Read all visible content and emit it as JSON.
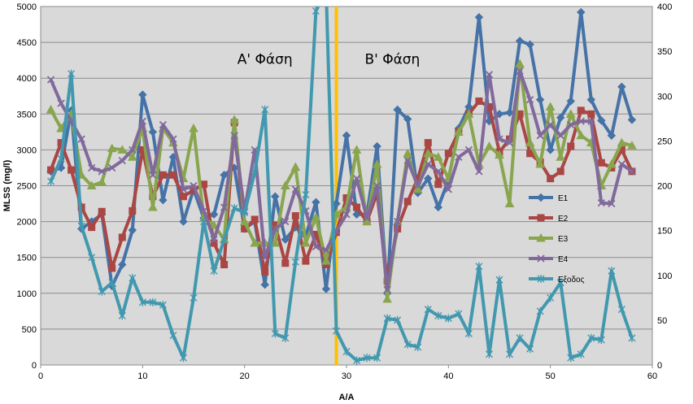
{
  "chart_data": {
    "type": "line",
    "xlabel": "Α/Α",
    "ylabel": "MLSS (mg/l)",
    "xlim": [
      0,
      60
    ],
    "ylim": [
      0,
      5000
    ],
    "y2lim": [
      0,
      400
    ],
    "x_ticks": [
      "0",
      "10",
      "20",
      "30",
      "40",
      "50",
      "60"
    ],
    "y_ticks": [
      "0",
      "500",
      "1000",
      "1500",
      "2000",
      "2500",
      "3000",
      "3500",
      "4000",
      "4500",
      "5000"
    ],
    "y2_ticks": [
      "0",
      "50",
      "100",
      "150",
      "200",
      "250",
      "300",
      "350",
      "400"
    ],
    "grid": true,
    "plot_background": "#d9d9d9",
    "legend_position": "right",
    "divider": {
      "x": 29,
      "color": "#ffc000"
    },
    "annotations": [
      {
        "text": "Α' Φάση",
        "x": 22,
        "y": 4200
      },
      {
        "text": "Β' Φάση",
        "x": 34.5,
        "y": 4200
      }
    ],
    "series": [
      {
        "name": "Ε1",
        "axis": "left",
        "color": "#4572a7",
        "marker": "diamond",
        "x": [
          1,
          2,
          3,
          4,
          5,
          6,
          7,
          8,
          9,
          10,
          11,
          12,
          13,
          14,
          15,
          16,
          17,
          18,
          19,
          20,
          21,
          22,
          23,
          24,
          25,
          26,
          27,
          28,
          29,
          30,
          31,
          32,
          33,
          34,
          35,
          36,
          37,
          38,
          39,
          40,
          41,
          42,
          43,
          44,
          45,
          46,
          47,
          48,
          49,
          50,
          51,
          52,
          53,
          54,
          55,
          56,
          57,
          58
        ],
        "y": [
          2700,
          2750,
          3550,
          1900,
          2000,
          2100,
          1100,
          1400,
          1880,
          3770,
          3250,
          2300,
          2900,
          2000,
          2450,
          2050,
          2100,
          2650,
          2750,
          1900,
          2000,
          1120,
          2350,
          1750,
          1920,
          1800,
          2270,
          1060,
          2250,
          3200,
          2100,
          2100,
          3050,
          1000,
          3560,
          3430,
          2400,
          2600,
          2200,
          2580,
          3300,
          3600,
          4850,
          3400,
          3500,
          3520,
          4520,
          4470,
          3700,
          3000,
          3450,
          3680,
          4920,
          3700,
          3410,
          3200,
          3880,
          3420
        ]
      },
      {
        "name": "Ε2",
        "axis": "left",
        "color": "#aa4643",
        "marker": "square",
        "x": [
          1,
          2,
          3,
          4,
          5,
          6,
          7,
          8,
          9,
          10,
          11,
          12,
          13,
          14,
          15,
          16,
          17,
          18,
          19,
          20,
          21,
          22,
          23,
          24,
          25,
          26,
          27,
          28,
          29,
          30,
          31,
          32,
          33,
          34,
          35,
          36,
          37,
          38,
          39,
          40,
          41,
          42,
          43,
          44,
          45,
          46,
          47,
          48,
          49,
          50,
          51,
          52,
          53,
          54,
          55,
          56,
          57,
          58
        ],
        "y": [
          2720,
          3100,
          2720,
          2200,
          1920,
          2140,
          1350,
          1780,
          2150,
          3000,
          2350,
          2650,
          2650,
          2350,
          2440,
          2520,
          1700,
          1400,
          3380,
          1900,
          2030,
          1300,
          1950,
          1420,
          2080,
          1450,
          1820,
          1400,
          1850,
          2330,
          2200,
          2000,
          2400,
          1170,
          1900,
          2280,
          2600,
          3100,
          2520,
          2950,
          3250,
          3500,
          3680,
          3600,
          2970,
          3150,
          3500,
          2950,
          2830,
          2600,
          2700,
          3050,
          3550,
          3500,
          2820,
          2750,
          3000,
          2700
        ]
      },
      {
        "name": "Ε3",
        "axis": "left",
        "color": "#89a54e",
        "marker": "triangle",
        "x": [
          1,
          2,
          3,
          4,
          5,
          6,
          7,
          8,
          9,
          10,
          11,
          12,
          13,
          14,
          15,
          16,
          17,
          18,
          19,
          20,
          21,
          22,
          23,
          24,
          25,
          26,
          27,
          28,
          29,
          30,
          31,
          32,
          33,
          34,
          35,
          36,
          37,
          38,
          39,
          40,
          41,
          42,
          43,
          44,
          45,
          46,
          47,
          48,
          49,
          50,
          51,
          52,
          53,
          54,
          55,
          56,
          57,
          58
        ],
        "y": [
          3560,
          3300,
          3500,
          2650,
          2500,
          2550,
          3020,
          3000,
          2900,
          3300,
          2200,
          3300,
          3100,
          2600,
          3300,
          2050,
          1950,
          1750,
          3420,
          2000,
          1700,
          1700,
          1700,
          2500,
          2760,
          1700,
          2060,
          1450,
          2100,
          2200,
          3000,
          2000,
          2800,
          920,
          2000,
          2950,
          2450,
          2950,
          2900,
          2600,
          3250,
          3500,
          2800,
          3050,
          2930,
          2250,
          4200,
          3100,
          2800,
          3600,
          2900,
          3500,
          3200,
          3100,
          2500,
          2800,
          3100,
          3060
        ]
      },
      {
        "name": "Ε4",
        "axis": "left",
        "color": "#80699b",
        "marker": "x",
        "x": [
          1,
          2,
          3,
          4,
          5,
          6,
          7,
          8,
          9,
          10,
          11,
          12,
          13,
          14,
          15,
          16,
          17,
          18,
          19,
          20,
          21,
          22,
          23,
          24,
          25,
          26,
          27,
          28,
          29,
          30,
          31,
          32,
          33,
          34,
          35,
          36,
          37,
          38,
          39,
          40,
          41,
          42,
          43,
          44,
          45,
          46,
          47,
          48,
          49,
          50,
          51,
          52,
          53,
          54,
          55,
          56,
          57,
          58
        ],
        "y": [
          3980,
          3650,
          3400,
          3150,
          2750,
          2700,
          2750,
          2850,
          3000,
          3400,
          2650,
          3350,
          3150,
          2450,
          2500,
          2150,
          1750,
          2200,
          3200,
          2150,
          3000,
          1500,
          1900,
          2000,
          2450,
          2150,
          1650,
          1600,
          1870,
          2100,
          2600,
          2050,
          2500,
          1050,
          2000,
          2850,
          2500,
          2800,
          2700,
          2450,
          2900,
          3000,
          2700,
          4050,
          3150,
          3100,
          4100,
          3700,
          3200,
          3350,
          3200,
          3350,
          3400,
          3400,
          2260,
          2250,
          2800,
          2700
        ]
      },
      {
        "name": "Εξοδος",
        "axis": "right",
        "color": "#4198af",
        "marker": "star",
        "x": [
          1,
          2,
          3,
          4,
          5,
          6,
          7,
          8,
          9,
          10,
          11,
          12,
          13,
          14,
          15,
          16,
          17,
          18,
          19,
          20,
          21,
          22,
          23,
          24,
          25,
          26,
          27,
          28,
          29,
          30,
          31,
          32,
          33,
          34,
          35,
          36,
          37,
          38,
          39,
          40,
          41,
          42,
          43,
          44,
          45,
          46,
          47,
          48,
          49,
          50,
          51,
          52,
          53,
          54,
          55,
          56,
          57,
          58
        ],
        "y": [
          205,
          230,
          325,
          155,
          120,
          82,
          92,
          55,
          97,
          70,
          70,
          67,
          33,
          8,
          75,
          160,
          105,
          140,
          175,
          170,
          215,
          285,
          35,
          30,
          115,
          190,
          395,
          420,
          38,
          15,
          5,
          8,
          8,
          52,
          50,
          23,
          20,
          62,
          55,
          52,
          57,
          35,
          110,
          12,
          95,
          12,
          30,
          18,
          60,
          75,
          92,
          8,
          12,
          30,
          28,
          105,
          62,
          30
        ]
      }
    ]
  }
}
